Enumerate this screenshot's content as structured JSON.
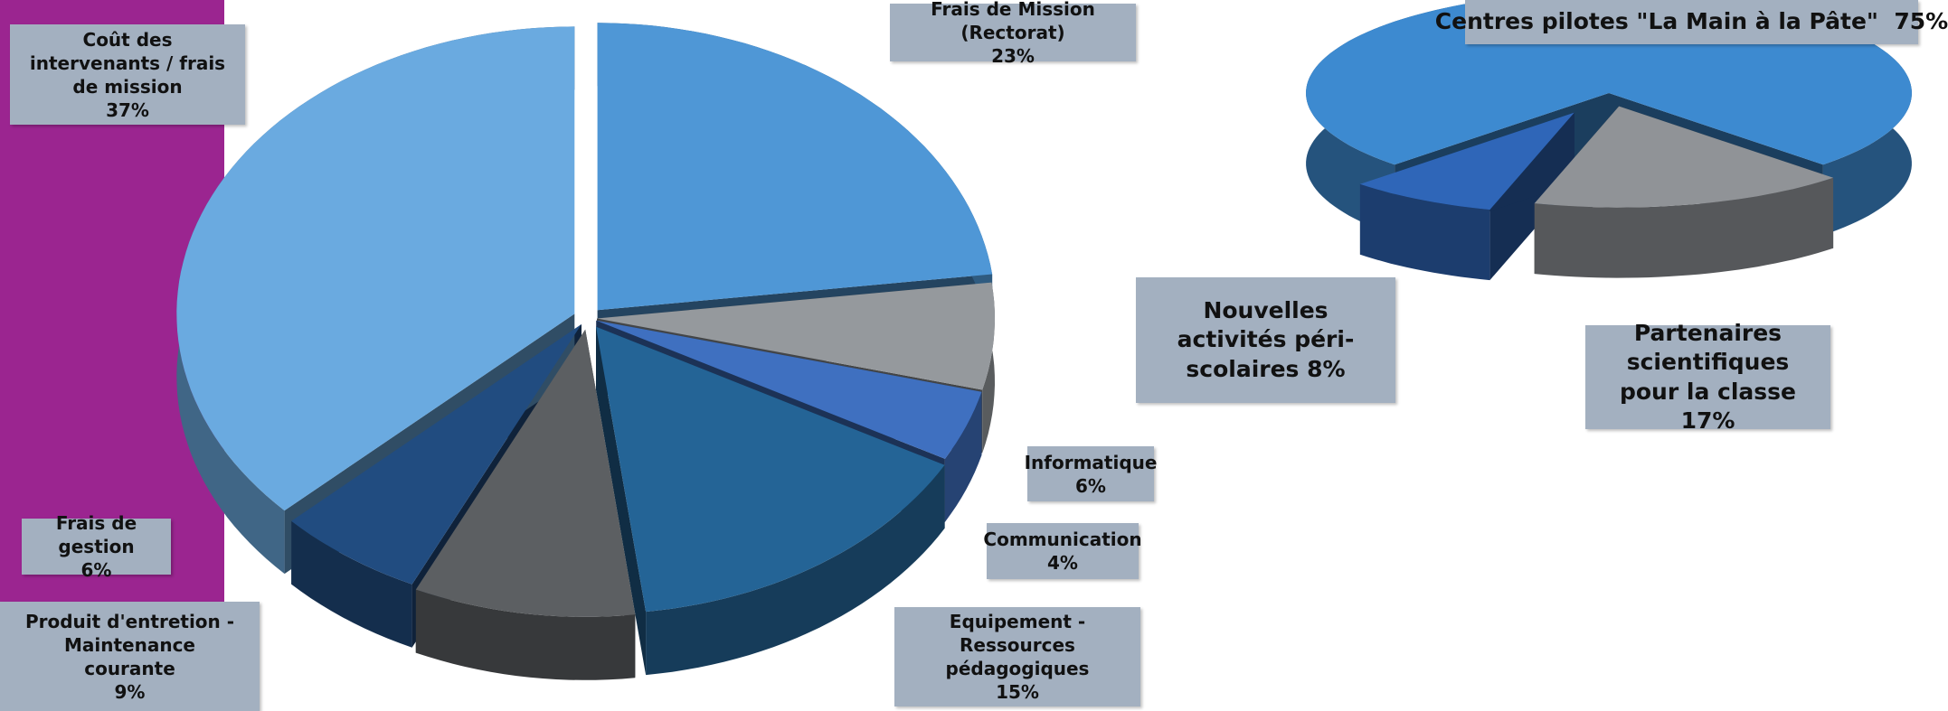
{
  "chart_data": [
    {
      "type": "pie",
      "categories": [
        "Frais de Mission (Rectorat)",
        "Informatique",
        "Communication",
        "Equipement - Ressources pédagogiques",
        "Produit d'entretion - Maintenance courante",
        "Frais de gestion",
        "Coût des intervenants / frais de mission"
      ],
      "values": [
        23,
        6,
        4,
        15,
        9,
        6,
        37
      ],
      "value_labels": [
        "23%",
        "6%",
        "4%",
        "15%",
        "9%",
        "6%",
        "37%"
      ],
      "colors": [
        "#4f97d6",
        "#95999d",
        "#3f70c0",
        "#246496",
        "#5c5f62",
        "#214c80",
        "#6aaae0"
      ]
    },
    {
      "type": "pie",
      "categories": [
        "Centres pilotes \"La Main à la Pâte\"",
        "Partenaires scientifiques pour la classe",
        "Nouvelles activités péri-scolaires"
      ],
      "values": [
        75,
        17,
        8
      ],
      "value_labels": [
        "75%",
        "17%",
        "8%"
      ],
      "colors": [
        "#3d8ad0",
        "#909397",
        "#2f66b8"
      ]
    }
  ]
}
